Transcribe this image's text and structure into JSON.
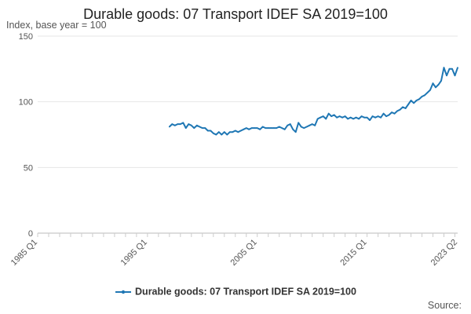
{
  "chart_data": {
    "type": "line",
    "title": "Durable goods: 07 Transport IDEF SA 2019=100",
    "ylabel": "Index, base year = 100",
    "xlabel": "",
    "xlim": [
      "1985 Q1",
      "2023 Q2"
    ],
    "ylim": [
      0,
      150
    ],
    "yticks": [
      0,
      50,
      100,
      150
    ],
    "xticks": [
      "1985 Q1",
      "1995 Q1",
      "2005 Q1",
      "2015 Q1",
      "2023 Q2"
    ],
    "grid": "horizontal",
    "legend_position": "bottom",
    "source_label": "Source:",
    "series": [
      {
        "name": "Durable goods: 07 Transport IDEF SA 2019=100",
        "color": "#1f77b4",
        "points": [
          [
            "1997 Q1",
            81
          ],
          [
            "1997 Q2",
            83
          ],
          [
            "1997 Q3",
            82
          ],
          [
            "1997 Q4",
            83
          ],
          [
            "1998 Q1",
            83
          ],
          [
            "1998 Q2",
            84
          ],
          [
            "1998 Q3",
            80
          ],
          [
            "1998 Q4",
            83
          ],
          [
            "1999 Q1",
            82
          ],
          [
            "1999 Q2",
            80
          ],
          [
            "1999 Q3",
            82
          ],
          [
            "1999 Q4",
            81
          ],
          [
            "2000 Q1",
            80
          ],
          [
            "2000 Q2",
            80
          ],
          [
            "2000 Q3",
            78
          ],
          [
            "2000 Q4",
            78
          ],
          [
            "2001 Q1",
            76
          ],
          [
            "2001 Q2",
            75
          ],
          [
            "2001 Q3",
            77
          ],
          [
            "2001 Q4",
            75
          ],
          [
            "2002 Q1",
            77
          ],
          [
            "2002 Q2",
            75
          ],
          [
            "2002 Q3",
            77
          ],
          [
            "2002 Q4",
            77
          ],
          [
            "2003 Q1",
            78
          ],
          [
            "2003 Q2",
            77
          ],
          [
            "2003 Q3",
            78
          ],
          [
            "2003 Q4",
            79
          ],
          [
            "2004 Q1",
            80
          ],
          [
            "2004 Q2",
            79
          ],
          [
            "2004 Q3",
            80
          ],
          [
            "2004 Q4",
            80
          ],
          [
            "2005 Q1",
            80
          ],
          [
            "2005 Q2",
            79
          ],
          [
            "2005 Q3",
            81
          ],
          [
            "2005 Q4",
            80
          ],
          [
            "2006 Q1",
            80
          ],
          [
            "2006 Q2",
            80
          ],
          [
            "2006 Q3",
            80
          ],
          [
            "2006 Q4",
            80
          ],
          [
            "2007 Q1",
            81
          ],
          [
            "2007 Q2",
            80
          ],
          [
            "2007 Q3",
            79
          ],
          [
            "2007 Q4",
            82
          ],
          [
            "2008 Q1",
            83
          ],
          [
            "2008 Q2",
            79
          ],
          [
            "2008 Q3",
            77
          ],
          [
            "2008 Q4",
            84
          ],
          [
            "2009 Q1",
            81
          ],
          [
            "2009 Q2",
            80
          ],
          [
            "2009 Q3",
            81
          ],
          [
            "2009 Q4",
            82
          ],
          [
            "2010 Q1",
            83
          ],
          [
            "2010 Q2",
            82
          ],
          [
            "2010 Q3",
            87
          ],
          [
            "2010 Q4",
            88
          ],
          [
            "2011 Q1",
            89
          ],
          [
            "2011 Q2",
            87
          ],
          [
            "2011 Q3",
            91
          ],
          [
            "2011 Q4",
            89
          ],
          [
            "2012 Q1",
            90
          ],
          [
            "2012 Q2",
            88
          ],
          [
            "2012 Q3",
            89
          ],
          [
            "2012 Q4",
            88
          ],
          [
            "2013 Q1",
            89
          ],
          [
            "2013 Q2",
            87
          ],
          [
            "2013 Q3",
            88
          ],
          [
            "2013 Q4",
            87
          ],
          [
            "2014 Q1",
            88
          ],
          [
            "2014 Q2",
            87
          ],
          [
            "2014 Q3",
            89
          ],
          [
            "2014 Q4",
            88
          ],
          [
            "2015 Q1",
            88
          ],
          [
            "2015 Q2",
            86
          ],
          [
            "2015 Q3",
            89
          ],
          [
            "2015 Q4",
            88
          ],
          [
            "2016 Q1",
            89
          ],
          [
            "2016 Q2",
            88
          ],
          [
            "2016 Q3",
            91
          ],
          [
            "2016 Q4",
            89
          ],
          [
            "2017 Q1",
            90
          ],
          [
            "2017 Q2",
            92
          ],
          [
            "2017 Q3",
            91
          ],
          [
            "2017 Q4",
            93
          ],
          [
            "2018 Q1",
            94
          ],
          [
            "2018 Q2",
            96
          ],
          [
            "2018 Q3",
            95
          ],
          [
            "2018 Q4",
            98
          ],
          [
            "2019 Q1",
            101
          ],
          [
            "2019 Q2",
            99
          ],
          [
            "2019 Q3",
            101
          ],
          [
            "2019 Q4",
            102
          ],
          [
            "2020 Q1",
            104
          ],
          [
            "2020 Q2",
            105
          ],
          [
            "2020 Q3",
            107
          ],
          [
            "2020 Q4",
            109
          ],
          [
            "2021 Q1",
            114
          ],
          [
            "2021 Q2",
            111
          ],
          [
            "2021 Q3",
            113
          ],
          [
            "2021 Q4",
            116
          ],
          [
            "2022 Q1",
            126
          ],
          [
            "2022 Q2",
            120
          ],
          [
            "2022 Q3",
            125
          ],
          [
            "2022 Q4",
            125
          ],
          [
            "2023 Q1",
            120
          ],
          [
            "2023 Q2",
            126
          ]
        ]
      }
    ]
  }
}
